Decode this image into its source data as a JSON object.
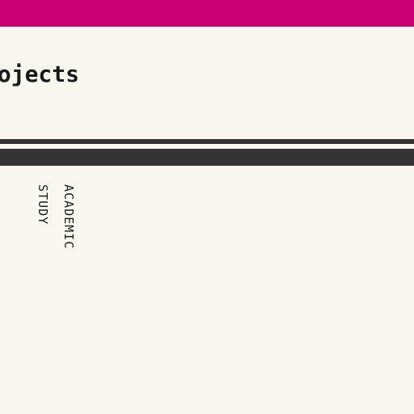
{
  "header": {
    "title": "rojects"
  },
  "tags": [
    "ACADEMIC",
    "STUDY"
  ],
  "colors": {
    "accent": "#c8006f",
    "background": "#f8f7f0",
    "rule": "#333333",
    "text": "#1a1a1a"
  }
}
